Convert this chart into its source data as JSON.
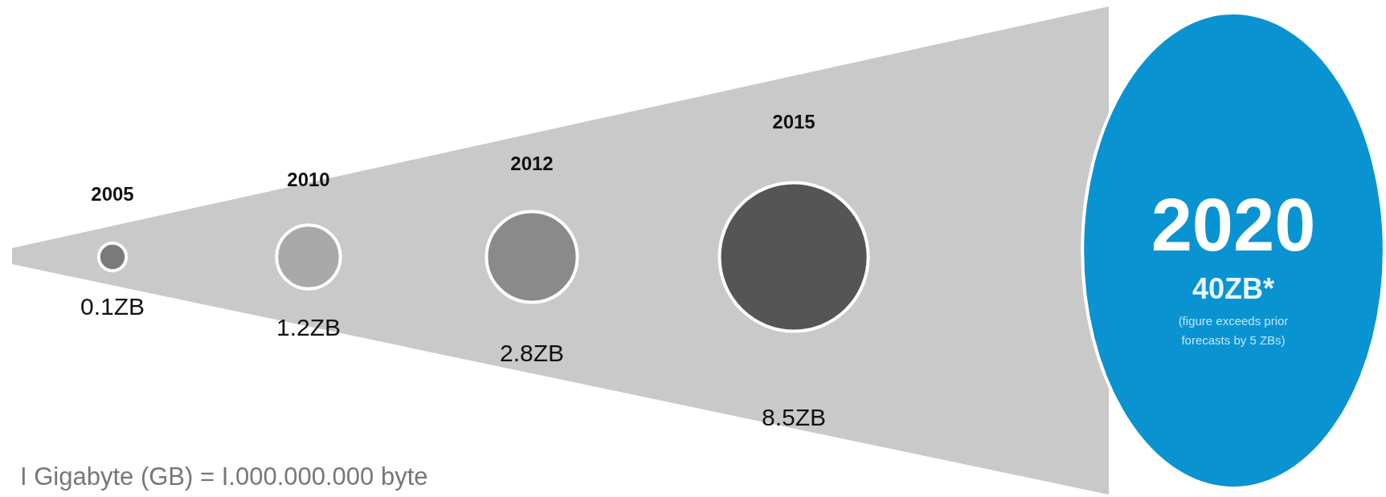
{
  "chart_data": {
    "type": "other",
    "categories": [
      "2005",
      "2010",
      "2012",
      "2015",
      "2020"
    ],
    "values": [
      0.1,
      1.2,
      2.8,
      8.5,
      40
    ],
    "value_labels": [
      "0.1ZB",
      "1.2ZB",
      "2.8ZB",
      "8.5ZB",
      "40ZB*"
    ],
    "colors": [
      "#7a7a7a",
      "#a9a9a9",
      "#8a8a8a",
      "#555555",
      "#0a93d1"
    ],
    "annotations": [
      "(figure exceeds prior forecasts by 5 ZBs)",
      "I Gigabyte (GB) = I.000.000.000 byte"
    ]
  }
}
